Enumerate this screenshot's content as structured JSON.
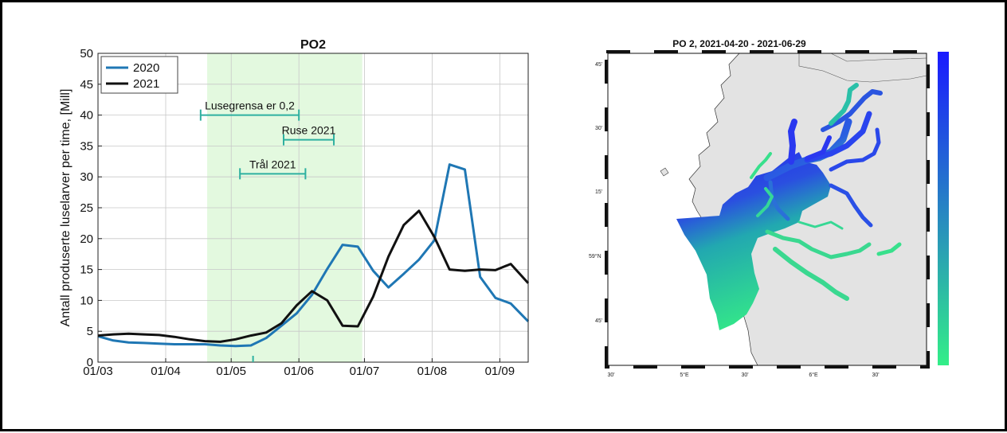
{
  "left_chart": {
    "chart_data": {
      "type": "line",
      "title": "PO2",
      "xlabel": "",
      "ylabel": "Antall produserte luselarver per time, [Mill]",
      "ylim": [
        0,
        50
      ],
      "yticks": [
        0,
        5,
        10,
        15,
        20,
        25,
        30,
        35,
        40,
        45,
        50
      ],
      "xlim": [
        0,
        197
      ],
      "xticks": [
        {
          "label": "01/03",
          "day": 0
        },
        {
          "label": "01/04",
          "day": 31
        },
        {
          "label": "01/05",
          "day": 61
        },
        {
          "label": "01/06",
          "day": 92
        },
        {
          "label": "01/07",
          "day": 122
        },
        {
          "label": "01/08",
          "day": 153
        },
        {
          "label": "01/09",
          "day": 184
        }
      ],
      "grid": true,
      "legend_position": "top-left",
      "shaded_period": {
        "start_day": 50,
        "end_day": 121,
        "color": "#e3f9df"
      },
      "marker_day": 71,
      "series": [
        {
          "name": "2020",
          "color": "#1f77b4",
          "x": [
            0,
            7,
            14,
            21,
            28,
            35,
            42,
            49,
            56,
            63,
            70,
            77,
            84,
            91,
            98,
            105,
            112,
            119,
            126,
            133,
            140,
            147,
            154,
            161,
            168,
            175,
            182,
            189,
            197
          ],
          "y": [
            4.2,
            3.5,
            3.2,
            3.1,
            3.0,
            2.9,
            2.9,
            2.9,
            2.7,
            2.6,
            2.7,
            3.9,
            5.9,
            7.9,
            10.9,
            15.1,
            19.0,
            18.7,
            14.8,
            12.1,
            14.3,
            16.6,
            19.7,
            32.0,
            31.2,
            13.8,
            10.4,
            9.5,
            6.6
          ]
        },
        {
          "name": "2021",
          "color": "#111111",
          "x": [
            0,
            7,
            14,
            21,
            28,
            35,
            42,
            49,
            56,
            63,
            70,
            77,
            84,
            91,
            98,
            105,
            112,
            119,
            126,
            133,
            140,
            147,
            154,
            161,
            168,
            175,
            182,
            189,
            197
          ],
          "y": [
            4.3,
            4.5,
            4.6,
            4.5,
            4.4,
            4.1,
            3.7,
            3.4,
            3.3,
            3.7,
            4.3,
            4.8,
            6.3,
            9.2,
            11.5,
            10.0,
            5.9,
            5.8,
            10.6,
            17.1,
            22.2,
            24.5,
            20.3,
            15.0,
            14.8,
            15.0,
            14.9,
            15.9,
            12.8
          ]
        }
      ],
      "annotations": [
        {
          "text": "Lusegrensa er 0,2",
          "start_day": 47,
          "end_day": 92,
          "y": 40,
          "color": "#2eb0a0"
        },
        {
          "text": "Ruse 2021",
          "start_day": 85,
          "end_day": 108,
          "y": 36,
          "color": "#2eb0a0"
        },
        {
          "text": "Trål 2021",
          "start_day": 65,
          "end_day": 95,
          "y": 30.5,
          "color": "#2eb0a0"
        }
      ]
    }
  },
  "right_map": {
    "title": "PO 2, 2021-04-20 - 2021-06-29",
    "colorbar": {
      "top_color": "#1a1aff",
      "bottom_color": "#33ee88"
    },
    "left_labels": [
      "45'",
      "30'",
      "15'",
      "59°N",
      "45'"
    ],
    "bottom_labels": [
      "30'",
      "5°E",
      "30'",
      "6°E",
      "30'"
    ],
    "colors": {
      "land": "#e3e3e3",
      "sea": "#ffffff"
    }
  }
}
